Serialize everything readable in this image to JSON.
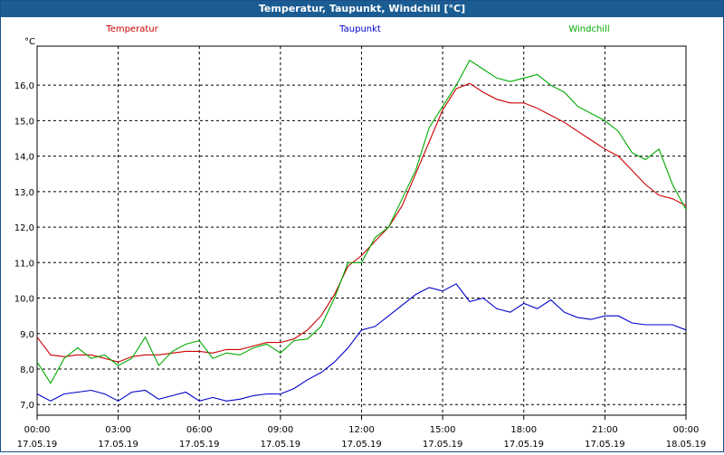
{
  "window": {
    "title": "Temperatur, Taupunkt, Windchill [°C]"
  },
  "colors": {
    "Temperatur": "#cc0000",
    "Taupunkt": "#0000cc",
    "Windchill": "#00aa00",
    "grid": "#000000",
    "title_bar": "#1b5d93"
  },
  "chart_data": {
    "type": "line",
    "title": "Temperatur, Taupunkt, Windchill [°C]",
    "ylabel": "°C",
    "xlabel": "",
    "ylim": [
      6.7,
      17.1
    ],
    "xlim": [
      0,
      24
    ],
    "grid": true,
    "legend_placement": "top",
    "y_ticks": [
      7,
      8,
      9,
      10,
      11,
      12,
      13,
      14,
      15,
      16
    ],
    "y_tick_labels": [
      "7,0",
      "8,0",
      "9,0",
      "10,0",
      "11,0",
      "12,0",
      "13,0",
      "14,0",
      "15,0",
      "16,0"
    ],
    "x_ticks": [
      0,
      3,
      6,
      9,
      12,
      15,
      18,
      21,
      24
    ],
    "x_tick_labels": [
      [
        "00:00",
        "17.05.19"
      ],
      [
        "03:00",
        "17.05.19"
      ],
      [
        "06:00",
        "17.05.19"
      ],
      [
        "09:00",
        "17.05.19"
      ],
      [
        "12:00",
        "17.05.19"
      ],
      [
        "15:00",
        "17.05.19"
      ],
      [
        "18:00",
        "17.05.19"
      ],
      [
        "21:00",
        "17.05.19"
      ],
      [
        "00:00",
        "18.05.19"
      ]
    ],
    "series": [
      {
        "name": "Temperatur",
        "x": [
          0,
          0.5,
          1,
          1.5,
          2,
          2.5,
          3,
          3.5,
          4,
          4.5,
          5,
          5.5,
          6,
          6.5,
          7,
          7.5,
          8,
          8.5,
          9,
          9.5,
          10,
          10.5,
          11,
          11.5,
          12,
          12.5,
          13,
          13.5,
          14,
          14.5,
          15,
          15.5,
          16,
          16.5,
          17,
          17.5,
          18,
          18.5,
          19,
          19.5,
          20,
          20.5,
          21,
          21.5,
          22,
          22.5,
          23,
          23.5,
          24
        ],
        "values": [
          8.9,
          8.4,
          8.35,
          8.4,
          8.4,
          8.3,
          8.2,
          8.35,
          8.4,
          8.4,
          8.45,
          8.5,
          8.5,
          8.45,
          8.55,
          8.55,
          8.65,
          8.75,
          8.75,
          8.85,
          9.1,
          9.5,
          10.1,
          10.9,
          11.2,
          11.6,
          12.0,
          12.6,
          13.5,
          14.4,
          15.3,
          15.9,
          16.05,
          15.8,
          15.6,
          15.5,
          15.5,
          15.35,
          15.15,
          14.95,
          14.7,
          14.45,
          14.2,
          14.0,
          13.6,
          13.2,
          12.9,
          12.8,
          12.6
        ]
      },
      {
        "name": "Taupunkt",
        "x": [
          0,
          0.5,
          1,
          1.5,
          2,
          2.5,
          3,
          3.5,
          4,
          4.5,
          5,
          5.5,
          6,
          6.5,
          7,
          7.5,
          8,
          8.5,
          9,
          9.5,
          10,
          10.5,
          11,
          11.5,
          12,
          12.5,
          13,
          13.5,
          14,
          14.5,
          15,
          15.5,
          16,
          16.5,
          17,
          17.5,
          18,
          18.5,
          19,
          19.5,
          20,
          20.5,
          21,
          21.5,
          22,
          22.5,
          23,
          23.5,
          24
        ],
        "values": [
          7.3,
          7.1,
          7.3,
          7.35,
          7.4,
          7.3,
          7.1,
          7.35,
          7.4,
          7.15,
          7.25,
          7.35,
          7.1,
          7.2,
          7.1,
          7.15,
          7.25,
          7.3,
          7.3,
          7.45,
          7.7,
          7.9,
          8.2,
          8.6,
          9.1,
          9.2,
          9.5,
          9.8,
          10.1,
          10.3,
          10.2,
          10.4,
          9.9,
          10.0,
          9.7,
          9.6,
          9.85,
          9.7,
          9.95,
          9.6,
          9.45,
          9.4,
          9.5,
          9.5,
          9.3,
          9.25,
          9.25,
          9.25,
          9.1
        ]
      },
      {
        "name": "Windchill",
        "x": [
          0,
          0.5,
          1,
          1.5,
          2,
          2.5,
          3,
          3.5,
          4,
          4.5,
          5,
          5.5,
          6,
          6.5,
          7,
          7.5,
          8,
          8.5,
          9,
          9.5,
          10,
          10.5,
          11,
          11.5,
          12,
          12.5,
          13,
          13.5,
          14,
          14.5,
          15,
          15.5,
          16,
          16.5,
          17,
          17.5,
          18,
          18.5,
          19,
          19.5,
          20,
          20.5,
          21,
          21.5,
          22,
          22.5,
          23,
          23.5,
          24
        ],
        "values": [
          8.2,
          7.6,
          8.3,
          8.6,
          8.3,
          8.4,
          8.1,
          8.3,
          8.9,
          8.1,
          8.5,
          8.7,
          8.8,
          8.3,
          8.45,
          8.4,
          8.6,
          8.7,
          8.45,
          8.8,
          8.85,
          9.2,
          10.0,
          11.0,
          11.0,
          11.7,
          12.0,
          12.8,
          13.6,
          14.8,
          15.4,
          16.0,
          16.7,
          16.45,
          16.2,
          16.1,
          16.2,
          16.3,
          16.0,
          15.8,
          15.4,
          15.2,
          15.0,
          14.7,
          14.1,
          13.9,
          14.2,
          13.2,
          12.5
        ]
      }
    ]
  }
}
